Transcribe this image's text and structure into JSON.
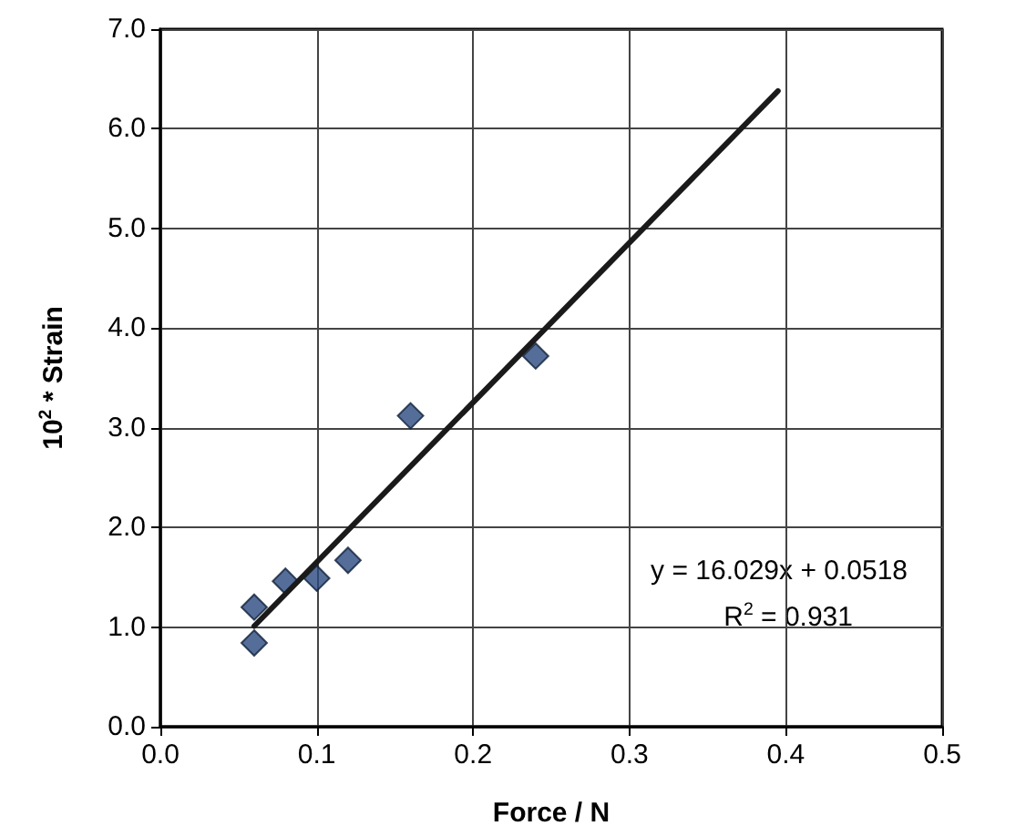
{
  "chart_data": {
    "type": "scatter",
    "xlabel": "Force / N",
    "ylabel": "10$^{2}$ * Strain",
    "annotations": [
      "y = 16.029x + 0.0518",
      "R$^{2}$ = 0.931"
    ],
    "xlim": [
      0,
      0.5
    ],
    "xticks": [
      {
        "value": 0,
        "label": "0.0"
      },
      0.1,
      0.2,
      0.3,
      0.4,
      0.5
    ],
    "ylim": [
      0,
      7
    ],
    "yticks": [
      {
        "value": 0,
        "label": "0.0"
      },
      {
        "value": 1,
        "label": "1.0"
      },
      {
        "value": 2,
        "label": "2.0"
      },
      {
        "value": 3,
        "label": "3.0"
      },
      {
        "value": 4,
        "label": "4.0"
      },
      {
        "value": 5,
        "label": "5.0"
      },
      {
        "value": 6,
        "label": "6.0"
      },
      {
        "value": 7,
        "label": "7.0"
      }
    ],
    "grid": true,
    "series": [
      {
        "color": "#2b4a80",
        "marker": "diamond",
        "x": [
          0.06,
          0.06,
          0.08,
          0.1,
          0.12,
          0.16,
          0.24
        ],
        "values": [
          1.2,
          0.84,
          1.46,
          1.49,
          1.67,
          3.12,
          3.72
        ]
      },
      {
        "type": "line",
        "color": "#1a1a1a",
        "marker": "none",
        "line_style": "solid",
        "x": [
          0.06,
          0.395
        ],
        "values": [
          1.01,
          6.38
        ]
      }
    ]
  }
}
